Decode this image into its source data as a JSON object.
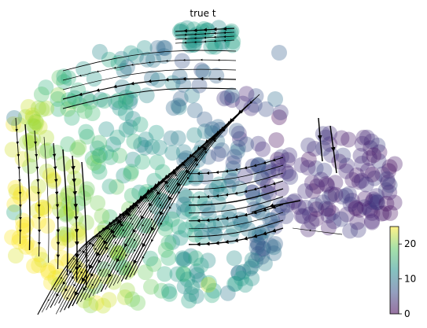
{
  "chart_data": {
    "type": "scatter",
    "title": "true t",
    "xlabel": "",
    "ylabel": "",
    "overlay": "velocity-streamlines",
    "colormap": "viridis",
    "colorbar": {
      "ticks": [
        {
          "value": 0,
          "label": "0"
        },
        {
          "value": 10,
          "label": "10"
        },
        {
          "value": 20,
          "label": "20"
        }
      ],
      "range": [
        0,
        25
      ]
    },
    "legend": "colorbar-bottom-right",
    "grid": false
  }
}
